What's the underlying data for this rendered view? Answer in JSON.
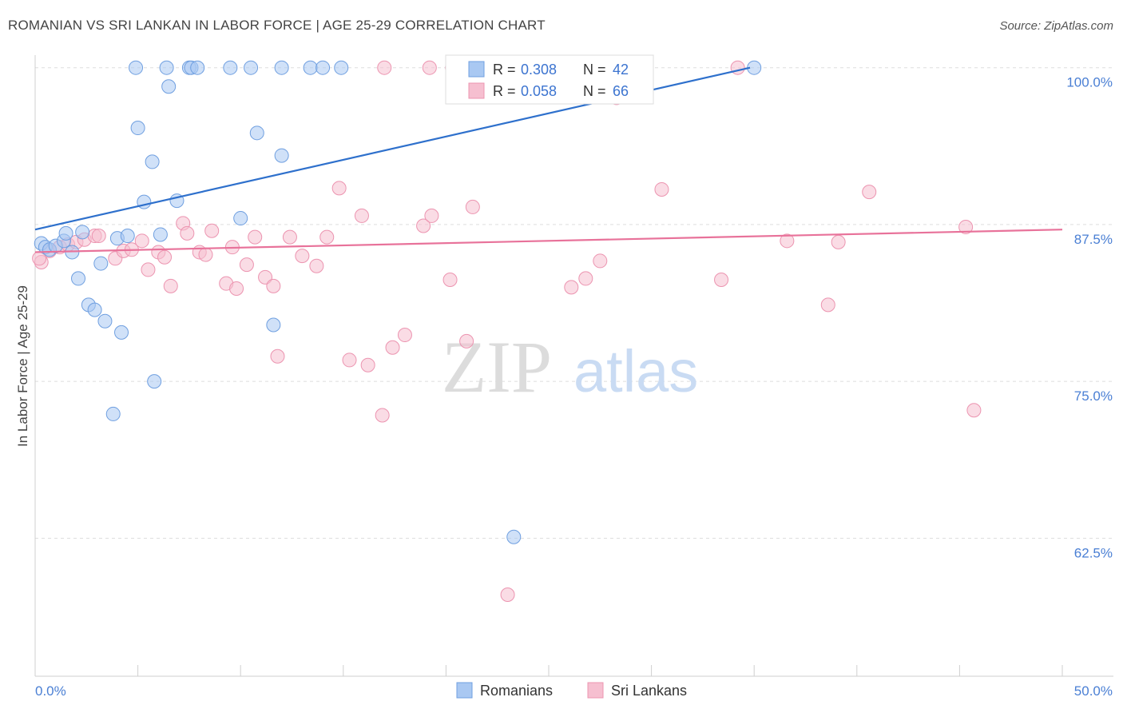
{
  "header": {
    "title": "ROMANIAN VS SRI LANKAN IN LABOR FORCE | AGE 25-29 CORRELATION CHART",
    "source": "Source: ZipAtlas.com"
  },
  "watermark": {
    "zip": "ZIP",
    "atlas": "atlas"
  },
  "colors": {
    "romanians_fill": "#a9c8f2",
    "romanians_stroke": "#6f9fe0",
    "romanians_line": "#2e70cc",
    "srilankans_fill": "#f6bfd0",
    "srilankans_stroke": "#ec94b0",
    "srilankans_line": "#e8729a",
    "tick_label": "#4a7fd4",
    "grid": "#dddddd"
  },
  "legend": {
    "rows": [
      {
        "r_label": "R =",
        "r_value": "0.308",
        "n_label": "N =",
        "n_value": "42"
      },
      {
        "r_label": "R =",
        "r_value": "0.058",
        "n_label": "N =",
        "n_value": "66"
      }
    ]
  },
  "chart_data": {
    "type": "scatter",
    "ylabel": "In Labor Force | Age 25-29",
    "xlim": [
      0,
      50
    ],
    "ylim": [
      51.5,
      101
    ],
    "x_tick_labels": [
      "0.0%",
      "50.0%"
    ],
    "y_ticks": [
      {
        "value": 100,
        "label": "100.0%"
      },
      {
        "value": 87.5,
        "label": "87.5%"
      },
      {
        "value": 75,
        "label": "75.0%"
      },
      {
        "value": 62.5,
        "label": "62.5%"
      }
    ],
    "grid": true,
    "legend_position": "bottom",
    "series": [
      {
        "name": "Romanians",
        "trend": {
          "x": [
            0,
            34.8
          ],
          "y": [
            87.1,
            100
          ]
        },
        "points": [
          [
            0.3,
            86.0
          ],
          [
            0.5,
            85.7
          ],
          [
            0.7,
            85.5
          ],
          [
            1.0,
            85.8
          ],
          [
            1.4,
            86.2
          ],
          [
            1.5,
            86.8
          ],
          [
            1.8,
            85.3
          ],
          [
            2.1,
            83.2
          ],
          [
            2.3,
            86.9
          ],
          [
            2.6,
            81.1
          ],
          [
            2.9,
            80.7
          ],
          [
            3.4,
            79.8
          ],
          [
            3.2,
            84.4
          ],
          [
            3.8,
            72.4
          ],
          [
            4.0,
            86.4
          ],
          [
            4.5,
            86.6
          ],
          [
            4.2,
            78.9
          ],
          [
            5.0,
            95.2
          ],
          [
            5.3,
            89.3
          ],
          [
            5.7,
            92.5
          ],
          [
            5.8,
            75.0
          ],
          [
            6.1,
            86.7
          ],
          [
            6.5,
            98.5
          ],
          [
            6.9,
            89.4
          ],
          [
            4.9,
            100
          ],
          [
            6.4,
            100
          ],
          [
            7.5,
            100
          ],
          [
            7.6,
            100
          ],
          [
            7.9,
            100
          ],
          [
            9.5,
            100
          ],
          [
            10.5,
            100
          ],
          [
            12.0,
            100
          ],
          [
            13.4,
            100
          ],
          [
            14.0,
            100
          ],
          [
            14.9,
            100
          ],
          [
            28.0,
            100
          ],
          [
            35.0,
            100
          ],
          [
            10.0,
            88.0
          ],
          [
            10.8,
            94.8
          ],
          [
            12.0,
            93.0
          ],
          [
            11.6,
            79.5
          ],
          [
            23.3,
            62.6
          ]
        ]
      },
      {
        "name": "Sri Lankans",
        "trend": {
          "x": [
            0,
            50
          ],
          "y": [
            85.3,
            87.1
          ]
        },
        "points": [
          [
            0.3,
            84.5
          ],
          [
            0.7,
            85.4
          ],
          [
            1.2,
            85.7
          ],
          [
            1.6,
            85.9
          ],
          [
            2.0,
            86.1
          ],
          [
            2.4,
            86.3
          ],
          [
            2.9,
            86.6
          ],
          [
            3.1,
            86.6
          ],
          [
            3.9,
            84.8
          ],
          [
            4.3,
            85.4
          ],
          [
            4.7,
            85.5
          ],
          [
            5.2,
            86.2
          ],
          [
            5.5,
            83.9
          ],
          [
            6.0,
            85.3
          ],
          [
            6.3,
            84.9
          ],
          [
            6.6,
            82.6
          ],
          [
            7.2,
            87.6
          ],
          [
            7.4,
            86.8
          ],
          [
            8.0,
            85.3
          ],
          [
            8.3,
            85.1
          ],
          [
            8.6,
            87.0
          ],
          [
            9.3,
            82.8
          ],
          [
            9.6,
            85.7
          ],
          [
            9.8,
            82.4
          ],
          [
            10.3,
            84.3
          ],
          [
            10.7,
            86.5
          ],
          [
            11.2,
            83.3
          ],
          [
            11.6,
            82.6
          ],
          [
            11.8,
            77.0
          ],
          [
            12.4,
            86.5
          ],
          [
            13.0,
            85.0
          ],
          [
            13.7,
            84.2
          ],
          [
            14.2,
            86.5
          ],
          [
            14.8,
            90.4
          ],
          [
            15.3,
            76.7
          ],
          [
            15.9,
            88.2
          ],
          [
            16.2,
            76.3
          ],
          [
            16.9,
            72.3
          ],
          [
            17.4,
            77.7
          ],
          [
            18.0,
            78.7
          ],
          [
            18.9,
            87.4
          ],
          [
            19.3,
            88.2
          ],
          [
            20.2,
            83.1
          ],
          [
            21.0,
            78.2
          ],
          [
            21.3,
            88.9
          ],
          [
            23.0,
            58.0
          ],
          [
            26.1,
            82.5
          ],
          [
            26.8,
            83.2
          ],
          [
            27.5,
            84.6
          ],
          [
            28.3,
            97.6
          ],
          [
            30.5,
            90.3
          ],
          [
            33.4,
            83.1
          ],
          [
            36.6,
            86.2
          ],
          [
            38.6,
            81.1
          ],
          [
            39.1,
            86.1
          ],
          [
            40.6,
            90.1
          ],
          [
            45.3,
            87.3
          ],
          [
            45.7,
            72.7
          ],
          [
            17.0,
            100
          ],
          [
            19.2,
            100
          ],
          [
            20.3,
            100
          ],
          [
            34.2,
            100
          ],
          [
            29.0,
            100
          ],
          [
            25.2,
            100
          ],
          [
            0.2,
            84.8
          ],
          [
            24.6,
            100
          ]
        ]
      }
    ]
  }
}
